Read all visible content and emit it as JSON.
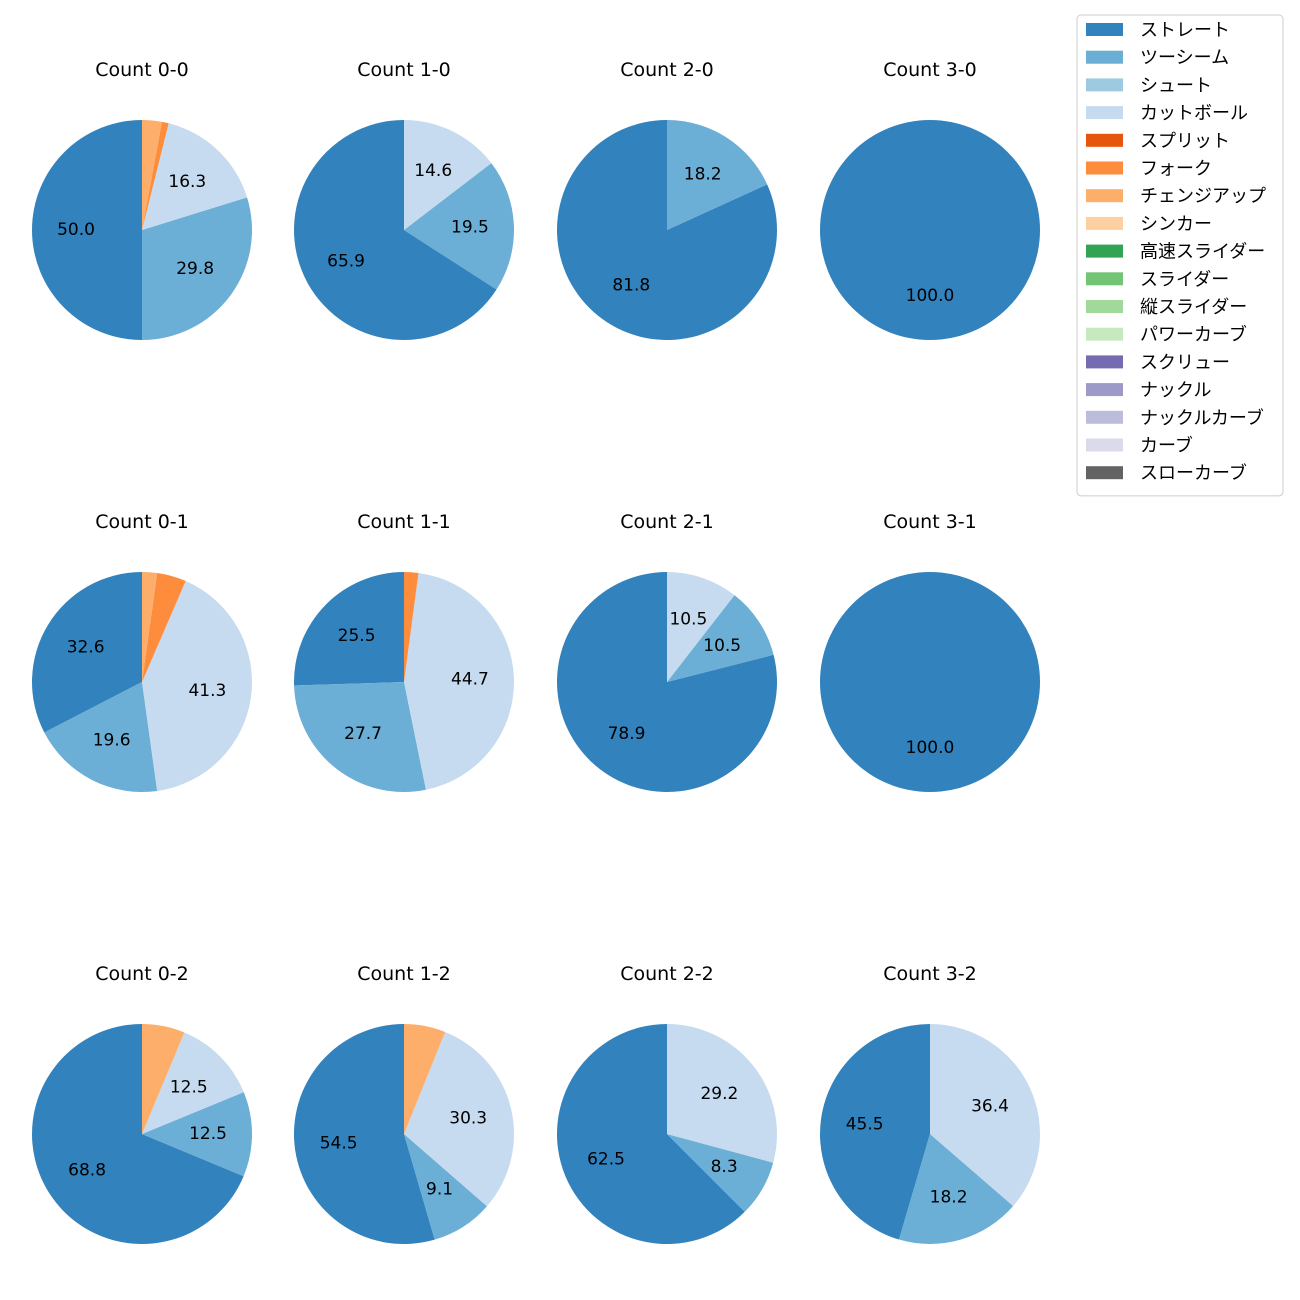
{
  "chart_data": {
    "type": "pie",
    "legend_position": "top-right",
    "colors": {
      "ストレート": "#3182bd",
      "ツーシーム": "#6baed6",
      "シュート": "#9ecae1",
      "カットボール": "#c6dbef",
      "スプリット": "#e6550d",
      "フォーク": "#fd8d3c",
      "チェンジアップ": "#fdae6b",
      "シンカー": "#fdd0a2",
      "高速スライダー": "#31a354",
      "スライダー": "#74c476",
      "縦スライダー": "#a1d99b",
      "パワーカーブ": "#c7e9c0",
      "スクリュー": "#756bb1",
      "ナックル": "#9e9ac8",
      "ナックルカーブ": "#bcbddc",
      "カーブ": "#dadaeb",
      "スローカーブ": "#636363"
    },
    "legend": [
      "ストレート",
      "ツーシーム",
      "シュート",
      "カットボール",
      "スプリット",
      "フォーク",
      "チェンジアップ",
      "シンカー",
      "高速スライダー",
      "スライダー",
      "縦スライダー",
      "パワーカーブ",
      "スクリュー",
      "ナックル",
      "ナックルカーブ",
      "カーブ",
      "スローカーブ"
    ],
    "charts": [
      {
        "title": "Count 0-0",
        "slices": [
          {
            "pitch": "ストレート",
            "value": 50.0,
            "label": "50.0"
          },
          {
            "pitch": "ツーシーム",
            "value": 29.8,
            "label": "29.8"
          },
          {
            "pitch": "カットボール",
            "value": 16.3,
            "label": "16.3"
          },
          {
            "pitch": "フォーク",
            "value": 1.0,
            "label": ""
          },
          {
            "pitch": "チェンジアップ",
            "value": 2.9,
            "label": ""
          }
        ]
      },
      {
        "title": "Count 1-0",
        "slices": [
          {
            "pitch": "ストレート",
            "value": 65.9,
            "label": "65.9"
          },
          {
            "pitch": "ツーシーム",
            "value": 19.5,
            "label": "19.5"
          },
          {
            "pitch": "カットボール",
            "value": 14.6,
            "label": "14.6"
          }
        ]
      },
      {
        "title": "Count 2-0",
        "slices": [
          {
            "pitch": "ストレート",
            "value": 81.8,
            "label": "81.8"
          },
          {
            "pitch": "ツーシーム",
            "value": 18.2,
            "label": "18.2"
          }
        ]
      },
      {
        "title": "Count 3-0",
        "slices": [
          {
            "pitch": "ストレート",
            "value": 100.0,
            "label": "100.0"
          }
        ]
      },
      {
        "title": "Count 0-1",
        "slices": [
          {
            "pitch": "ストレート",
            "value": 32.6,
            "label": "32.6"
          },
          {
            "pitch": "ツーシーム",
            "value": 19.6,
            "label": "19.6"
          },
          {
            "pitch": "カットボール",
            "value": 41.3,
            "label": "41.3"
          },
          {
            "pitch": "フォーク",
            "value": 4.3,
            "label": ""
          },
          {
            "pitch": "チェンジアップ",
            "value": 2.2,
            "label": ""
          }
        ]
      },
      {
        "title": "Count 1-1",
        "slices": [
          {
            "pitch": "ストレート",
            "value": 25.5,
            "label": "25.5"
          },
          {
            "pitch": "ツーシーム",
            "value": 27.7,
            "label": "27.7"
          },
          {
            "pitch": "カットボール",
            "value": 44.7,
            "label": "44.7"
          },
          {
            "pitch": "フォーク",
            "value": 2.1,
            "label": ""
          }
        ]
      },
      {
        "title": "Count 2-1",
        "slices": [
          {
            "pitch": "ストレート",
            "value": 78.9,
            "label": "78.9"
          },
          {
            "pitch": "ツーシーム",
            "value": 10.5,
            "label": "10.5"
          },
          {
            "pitch": "カットボール",
            "value": 10.5,
            "label": "10.5"
          }
        ]
      },
      {
        "title": "Count 3-1",
        "slices": [
          {
            "pitch": "ストレート",
            "value": 100.0,
            "label": "100.0"
          }
        ]
      },
      {
        "title": "Count 0-2",
        "slices": [
          {
            "pitch": "ストレート",
            "value": 68.8,
            "label": "68.8"
          },
          {
            "pitch": "ツーシーム",
            "value": 12.5,
            "label": "12.5"
          },
          {
            "pitch": "カットボール",
            "value": 12.5,
            "label": "12.5"
          },
          {
            "pitch": "チェンジアップ",
            "value": 6.3,
            "label": ""
          }
        ]
      },
      {
        "title": "Count 1-2",
        "slices": [
          {
            "pitch": "ストレート",
            "value": 54.5,
            "label": "54.5"
          },
          {
            "pitch": "ツーシーム",
            "value": 9.1,
            "label": "9.1"
          },
          {
            "pitch": "カットボール",
            "value": 30.3,
            "label": "30.3"
          },
          {
            "pitch": "チェンジアップ",
            "value": 6.1,
            "label": ""
          }
        ]
      },
      {
        "title": "Count 2-2",
        "slices": [
          {
            "pitch": "ストレート",
            "value": 62.5,
            "label": "62.5"
          },
          {
            "pitch": "ツーシーム",
            "value": 8.3,
            "label": "8.3"
          },
          {
            "pitch": "カットボール",
            "value": 29.2,
            "label": "29.2"
          }
        ]
      },
      {
        "title": "Count 3-2",
        "slices": [
          {
            "pitch": "ストレート",
            "value": 45.5,
            "label": "45.5"
          },
          {
            "pitch": "ツーシーム",
            "value": 18.2,
            "label": "18.2"
          },
          {
            "pitch": "カットボール",
            "value": 36.4,
            "label": "36.4"
          }
        ]
      }
    ]
  }
}
